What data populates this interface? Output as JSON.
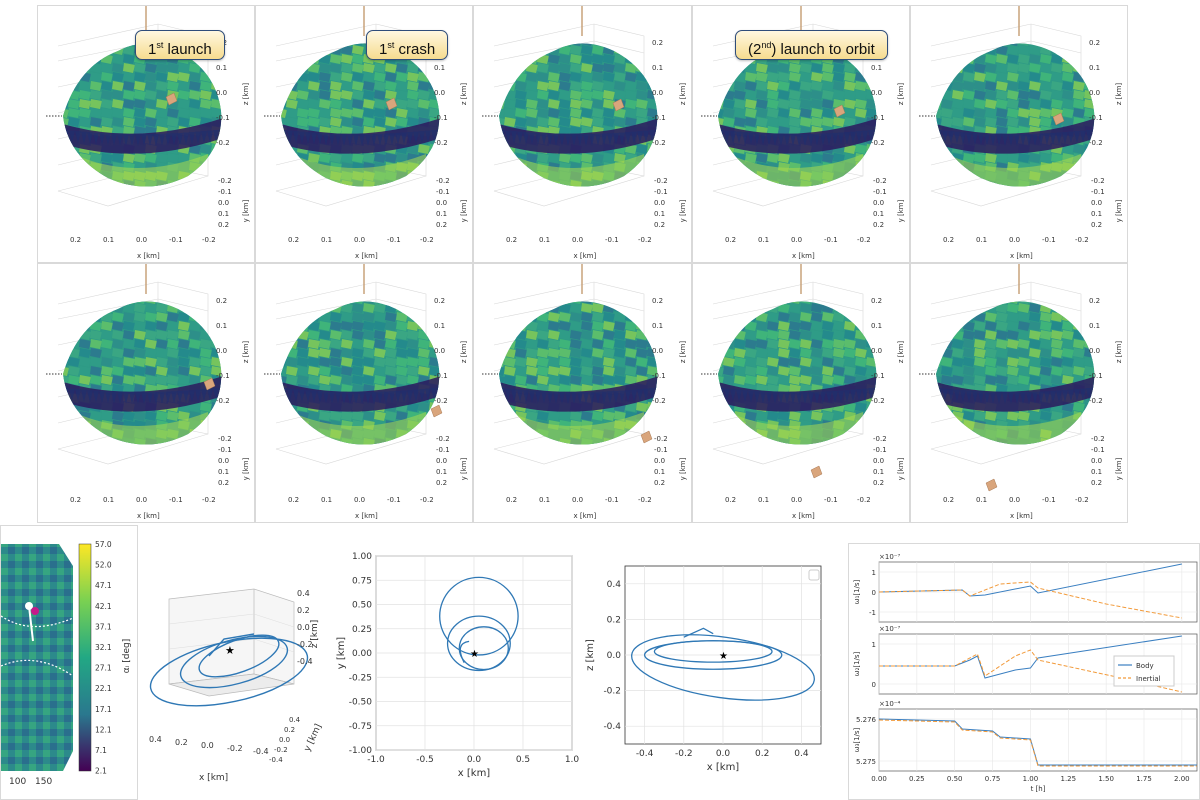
{
  "callouts": [
    {
      "pre": "1",
      "sup": "st",
      "post": " launch"
    },
    {
      "pre": "1",
      "sup": "st",
      "post": " crash"
    },
    {
      "pre": "(2",
      "sup": "nd",
      "post": ") launch to orbit"
    }
  ],
  "asteroid_axes": {
    "z_label": "z [km]",
    "y_label": "y [km]",
    "x_label": "x [km]",
    "z_ticks": [
      "0.2",
      "0.1",
      "0.0",
      "-0.1",
      "-0.2"
    ],
    "y_ticks": [
      "-0.2",
      "-0.1",
      "0.0",
      "0.1",
      "0.2"
    ],
    "x_ticks": [
      "0.2",
      "0.1",
      "0.0",
      "-0.1",
      "-0.2"
    ]
  },
  "colorbar": {
    "label": "αᵢ [deg]",
    "ticks": [
      "57.0",
      "52.0",
      "47.1",
      "42.1",
      "37.1",
      "32.1",
      "27.1",
      "22.1",
      "17.1",
      "12.1",
      "7.1",
      "2.1"
    ],
    "x_ticks": [
      "100",
      "150"
    ]
  },
  "chart_data": [
    {
      "type": "line",
      "id": "orbit-3d",
      "xlabel": "x [km]",
      "ylabel": "y [km]",
      "zlabel": "z [km]",
      "x_ticks": [
        "0.4",
        "0.2",
        "0.0",
        "-0.2",
        "-0.4"
      ],
      "y_ticks": [
        "-0.4",
        "-0.2",
        "0.0",
        "0.2",
        "0.4"
      ],
      "z_ticks": [
        "0.4",
        "0.2",
        "0.0",
        "-0.2",
        "-0.4"
      ]
    },
    {
      "type": "line",
      "id": "orbit-xy",
      "xlabel": "x [km]",
      "ylabel": "y [km]",
      "xlim": [
        -1.0,
        1.0
      ],
      "ylim": [
        -1.0,
        1.0
      ],
      "x_ticks": [
        "-1.0",
        "-0.5",
        "0.0",
        "0.5",
        "1.0"
      ],
      "y_ticks": [
        "1.00",
        "0.75",
        "0.50",
        "0.25",
        "0.00",
        "-0.25",
        "-0.50",
        "-0.75",
        "-1.00"
      ],
      "marker": "star at origin",
      "grid": true
    },
    {
      "type": "line",
      "id": "orbit-xz",
      "xlabel": "x [km]",
      "ylabel": "z [km]",
      "xlim": [
        -0.5,
        0.5
      ],
      "ylim": [
        -0.5,
        0.5
      ],
      "x_ticks": [
        "-0.4",
        "-0.2",
        "0.0",
        "0.2",
        "0.4"
      ],
      "y_ticks": [
        "0.4",
        "0.2",
        "0.0",
        "-0.2",
        "-0.4"
      ],
      "marker": "star at origin",
      "grid": true
    },
    {
      "type": "line",
      "id": "angular-velocity",
      "xlabel": "t [h]",
      "x_ticks": [
        "0.00",
        "0.25",
        "0.50",
        "0.75",
        "1.00",
        "1.25",
        "1.50",
        "1.75",
        "2.00"
      ],
      "legend": [
        "Body",
        "Inertial"
      ],
      "legend_position": "right of middle panel",
      "colors": {
        "body": "#3a7fc1",
        "inertial": "#f29a3a"
      },
      "panels": [
        {
          "ylabel": "ω₁[1/s]",
          "scale": "×10⁻⁷",
          "y_ticks": [
            "1",
            "0",
            "-1"
          ]
        },
        {
          "ylabel": "ω₂[1/s]",
          "scale": "×10⁻⁷",
          "y_ticks": [
            "1",
            "0"
          ]
        },
        {
          "ylabel": "ω₃[1/s]",
          "scale": "×10⁻⁴",
          "y_ticks": [
            "5.276",
            "5.275"
          ]
        }
      ]
    }
  ]
}
